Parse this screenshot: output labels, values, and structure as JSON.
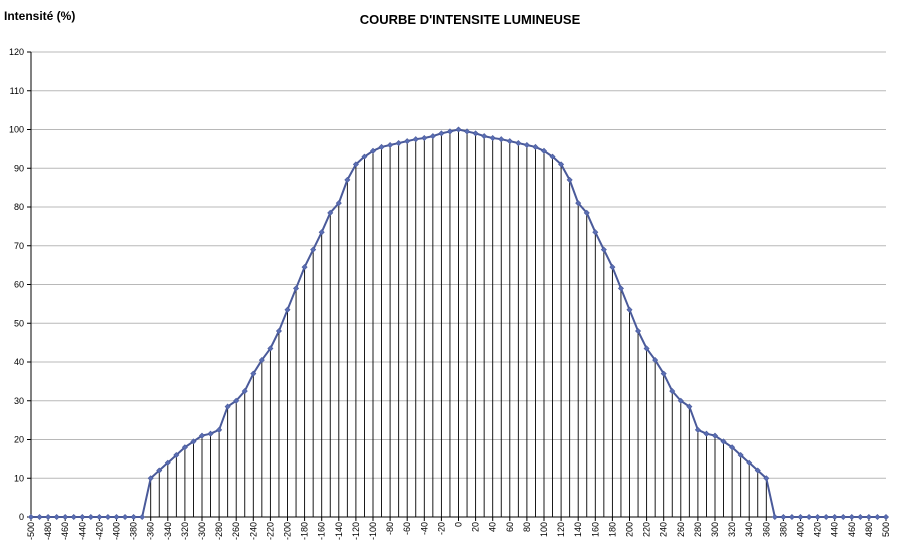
{
  "chart_data": {
    "type": "line",
    "title": "COURBE D'INTENSITE LUMINEUSE",
    "ylabel": "Intensité (%)",
    "xlabel": "",
    "ylim": [
      0,
      120
    ],
    "xlim": [
      -500,
      500
    ],
    "yticks": [
      "0",
      "10",
      "20",
      "30",
      "40",
      "50",
      "60",
      "70",
      "80",
      "90",
      "100",
      "110",
      "120"
    ],
    "xticks": [
      "-500",
      "-480",
      "-460",
      "-440",
      "-420",
      "-400",
      "-380",
      "-360",
      "-340",
      "-320",
      "-300",
      "-280",
      "-260",
      "-240",
      "-220",
      "-200",
      "-180",
      "-160",
      "-140",
      "-120",
      "-100",
      "-80",
      "-60",
      "-40",
      "-20",
      "0",
      "20",
      "40",
      "60",
      "80",
      "100",
      "120",
      "140",
      "160",
      "180",
      "200",
      "220",
      "240",
      "260",
      "280",
      "300",
      "320",
      "340",
      "360",
      "380",
      "400",
      "420",
      "440",
      "460",
      "480",
      "500"
    ],
    "grid": true,
    "legend": "none",
    "colors": {
      "line": "#4a5a9a",
      "marker": "#5a6eb4",
      "drop_line": "#000000",
      "grid": "#b8b8b8",
      "axis": "#000000"
    },
    "series": [
      {
        "drop_lines": true,
        "x": [
          -500,
          -490,
          -480,
          -470,
          -460,
          -450,
          -440,
          -430,
          -420,
          -410,
          -400,
          -390,
          -380,
          -370,
          -360,
          -350,
          -340,
          -330,
          -320,
          -310,
          -300,
          -290,
          -280,
          -270,
          -260,
          -250,
          -240,
          -230,
          -220,
          -210,
          -200,
          -190,
          -180,
          -170,
          -160,
          -150,
          -140,
          -130,
          -120,
          -110,
          -100,
          -90,
          -80,
          -70,
          -60,
          -50,
          -40,
          -30,
          -20,
          -10,
          0,
          10,
          20,
          30,
          40,
          50,
          60,
          70,
          80,
          90,
          100,
          110,
          120,
          130,
          140,
          150,
          160,
          170,
          180,
          190,
          200,
          210,
          220,
          230,
          240,
          250,
          260,
          270,
          280,
          290,
          300,
          310,
          320,
          330,
          340,
          350,
          360,
          370,
          380,
          390,
          400,
          410,
          420,
          430,
          440,
          450,
          460,
          470,
          480,
          490,
          500
        ],
        "values": [
          0,
          0,
          0,
          0,
          0,
          0,
          0,
          0,
          0,
          0,
          0,
          0,
          0,
          0,
          10,
          12,
          14,
          16,
          18,
          19.5,
          21,
          21.5,
          22.5,
          28.5,
          30,
          32.5,
          37,
          40.5,
          43.5,
          48,
          53.5,
          59,
          64.5,
          69,
          73.5,
          78.5,
          81,
          87,
          91,
          93,
          94.5,
          95.5,
          96,
          96.5,
          97,
          97.5,
          97.8,
          98.3,
          99,
          99.5,
          100,
          99.5,
          99,
          98.3,
          97.8,
          97.5,
          97,
          96.5,
          96,
          95.5,
          94.5,
          93,
          91,
          87,
          81,
          78.5,
          73.5,
          69,
          64.5,
          59,
          53.5,
          48,
          43.5,
          40.5,
          37,
          32.5,
          30,
          28.5,
          22.5,
          21.5,
          21,
          19.5,
          18,
          16,
          14,
          12,
          10,
          0,
          0,
          0,
          0,
          0,
          0,
          0,
          0,
          0,
          0,
          0,
          0,
          0,
          0
        ]
      }
    ]
  }
}
